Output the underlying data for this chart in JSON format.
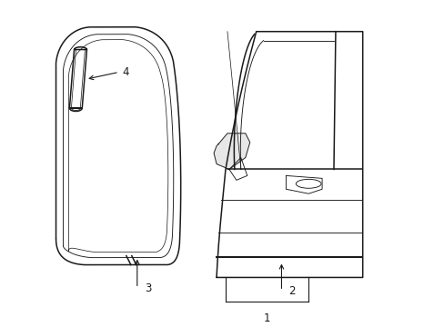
{
  "bg_color": "#ffffff",
  "line_color": "#1a1a1a",
  "lw": 1.1,
  "tlw": 0.65,
  "fig_width": 4.89,
  "fig_height": 3.6,
  "dpi": 100,
  "font_size": 8.5
}
